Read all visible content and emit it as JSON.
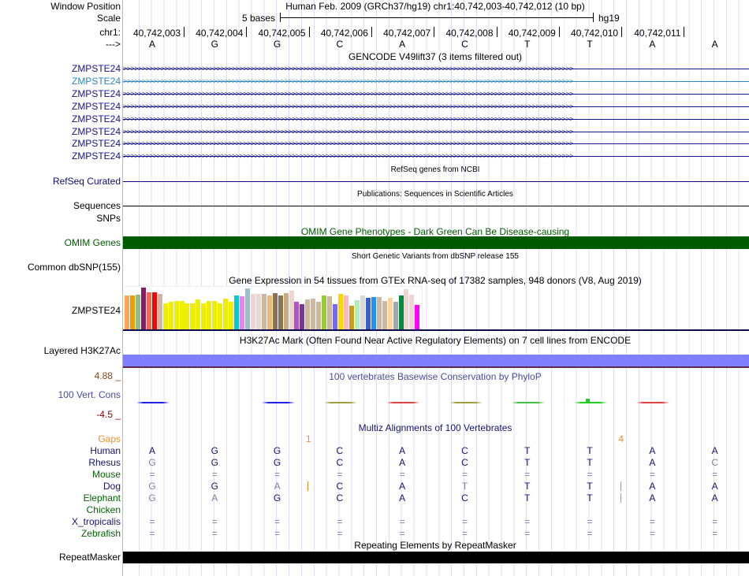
{
  "header": {
    "window_position_label": "Window Position",
    "window_title": "Human Feb. 2009 (GRCh37/hg19)   chr1:40,742,003-40,742,012 (10 bp)",
    "scale_label": "Scale",
    "scale_text": "5 bases",
    "assembly": "hg19",
    "chrom_label": "chr1:",
    "strand_label": "--->"
  },
  "positions": [
    "40,742,003",
    "40,742,004",
    "40,742,005",
    "40,742,006",
    "40,742,007",
    "40,742,008",
    "40,742,009",
    "40,742,010",
    "40,742,011"
  ],
  "bases": [
    "A",
    "G",
    "G",
    "C",
    "A",
    "C",
    "T",
    "T",
    "A",
    "A"
  ],
  "gencode": {
    "title": "GENCODE V49lift37 (3 items filtered out)",
    "genes": [
      "ZMPSTE24",
      "ZMPSTE24",
      "ZMPSTE24",
      "ZMPSTE24",
      "ZMPSTE24",
      "ZMPSTE24",
      "ZMPSTE24",
      "ZMPSTE24"
    ],
    "color": "#14148c",
    "highlight_color": "#2e86c1"
  },
  "refseq": {
    "title": "RefSeq genes from NCBI",
    "label": "RefSeq Curated"
  },
  "pubs": {
    "title": "Publications: Sequences in Scientific Articles",
    "label": "Sequences"
  },
  "snps": {
    "label": "SNPs"
  },
  "omim": {
    "title": "OMIM Gene Phenotypes - Dark Green Can Be Disease-causing",
    "label": "OMIM Genes",
    "color": "#005a00"
  },
  "dbsnp": {
    "title": "Short Genetic Variants from dbSNP release 155",
    "label": "Common dbSNP(155)"
  },
  "gtex": {
    "title": "Gene Expression in 54 tissues from GTEx RNA-seq of 17382 samples, 948 donors (V8, Aug 2019)",
    "label": "ZMPSTE24",
    "values": [
      44,
      44,
      45,
      54,
      48,
      48,
      46,
      34,
      36,
      37,
      37,
      34,
      34,
      39,
      34,
      37,
      37,
      34,
      40,
      36,
      44,
      43,
      53,
      46,
      46,
      46,
      44,
      47,
      44,
      47,
      50,
      36,
      33,
      39,
      40,
      36,
      44,
      43,
      33,
      46,
      44,
      31,
      38,
      44,
      41,
      42,
      42,
      37,
      41,
      36,
      44,
      52,
      45,
      32
    ],
    "colors": [
      "#FFA54F",
      "#EE9A00",
      "#8FBC8F",
      "#8B1C62",
      "#EE6A50",
      "#FF0000",
      "#CDB79E",
      "#EEEE00",
      "#EEEE00",
      "#EEEE00",
      "#EEEE00",
      "#EEEE00",
      "#EEEE00",
      "#EEEE00",
      "#EEEE00",
      "#EEEE00",
      "#EEEE00",
      "#EEEE00",
      "#EEEE00",
      "#EEEE00",
      "#00CDCD",
      "#EE82EE",
      "#9AC0CD",
      "#EED5D2",
      "#EED5D2",
      "#CDB79E",
      "#EEB977",
      "#8B7355",
      "#8B7355",
      "#CDAA7D",
      "#EED5D2",
      "#B452CD",
      "#7A378B",
      "#CDB79E",
      "#CDB79E",
      "#CDB79E",
      "#9ACD32",
      "#CDB79E",
      "#7B68EE",
      "#FFD700",
      "#FFB6C1",
      "#CD9B1D",
      "#B4EEB4",
      "#D9D9D9",
      "#3A5FCD",
      "#1E90FF",
      "#CDB79E",
      "#CDB79E",
      "#FFD39B",
      "#A6A6A6",
      "#008B45",
      "#EED5D2",
      "#EED5D2",
      "#FF00FF"
    ]
  },
  "h3k27ac": {
    "title": "H3K27Ac Mark (Often Found Near Active Regulatory Elements) on 7 cell lines from ENCODE",
    "label": "Layered H3K27Ac",
    "color": "#8080ff"
  },
  "phylop": {
    "title": "100 vertebrates Basewise Conservation by PhyloP",
    "label": "100 Vert. Cons",
    "max_label": "4.88 _",
    "min_label": "-4.5 _",
    "segments": [
      {
        "base": 0,
        "color": "#2020e0"
      },
      {
        "base": 2,
        "color": "#2020e0"
      },
      {
        "base": 3,
        "color": "#a0a040"
      },
      {
        "base": 4,
        "color": "#e04040"
      },
      {
        "base": 5,
        "color": "#a0a040"
      },
      {
        "base": 6,
        "color": "#40c040"
      },
      {
        "base": 7,
        "color": "#20d020"
      },
      {
        "base": 8,
        "color": "#e04040"
      }
    ]
  },
  "multiz": {
    "title": "Multiz Alignments of 100 Vertebrates",
    "gaps_label": "Gaps",
    "gaps": [
      {
        "after_base": 3,
        "count": "1"
      },
      {
        "after_base": 8,
        "count": "4"
      }
    ],
    "species": [
      {
        "name": "Human",
        "color": "#14146e",
        "seq": "AGGCACTTAA",
        "light": "0000000000",
        "ins": []
      },
      {
        "name": "Rhesus",
        "color": "#14146e",
        "seq": "GGGCACTTAC",
        "light": "1000000001",
        "ins": []
      },
      {
        "name": "Mouse",
        "color": "#006400",
        "seq": "==========",
        "light": "1111111111",
        "ins": []
      },
      {
        "name": "Dog",
        "color": "#14146e",
        "seq": "GGACATTTAA",
        "light": "1010010000",
        "ins": [
          3,
          8
        ]
      },
      {
        "name": "Elephant",
        "color": "#006400",
        "seq": "GAGCACTTAA",
        "light": "1100000000",
        "ins": [
          8
        ]
      },
      {
        "name": "Chicken",
        "color": "#006400",
        "seq": "          ",
        "light": "0000000000",
        "ins": []
      },
      {
        "name": "X_tropicalis",
        "color": "#14146e",
        "seq": "==========",
        "light": "1111111111",
        "ins": []
      },
      {
        "name": "Zebrafish",
        "color": "#006400",
        "seq": "==========",
        "light": "1111111111",
        "ins": []
      }
    ]
  },
  "repeatmasker": {
    "title": "Repeating Elements by RepeatMasker",
    "label": "RepeatMasker"
  }
}
